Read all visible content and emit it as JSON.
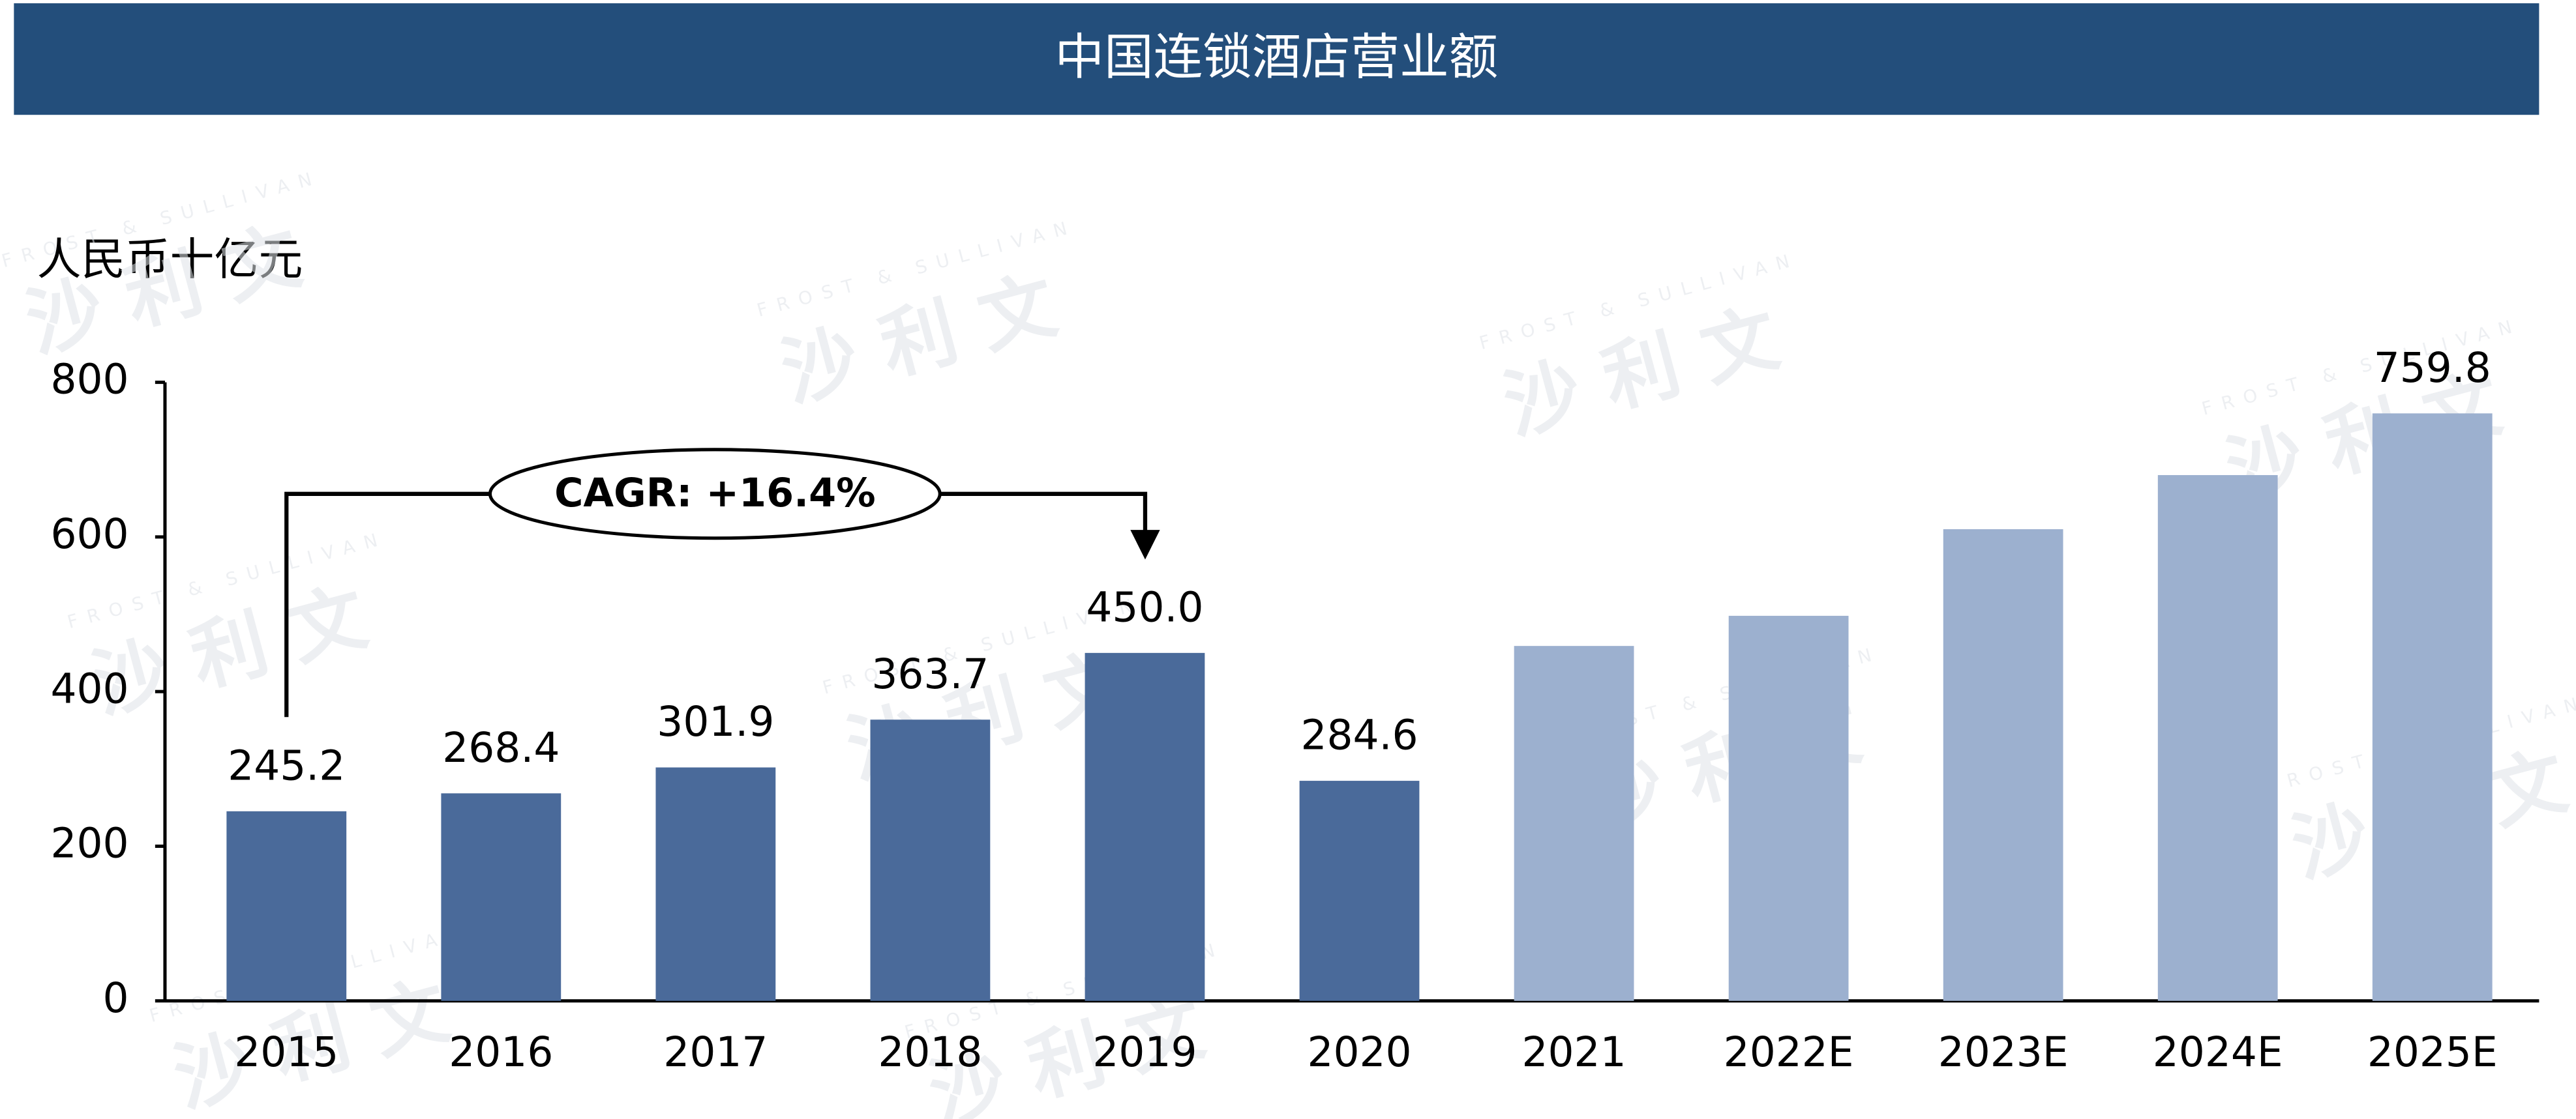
{
  "chart_data": {
    "type": "bar",
    "title": "中国连锁酒店营业额",
    "y_label": "人民币十亿元",
    "categories": [
      "2015",
      "2016",
      "2017",
      "2018",
      "2019",
      "2020",
      "2021",
      "2022E",
      "2023E",
      "2024E",
      "2025E"
    ],
    "values": [
      245.2,
      268.4,
      301.9,
      363.7,
      450.0,
      284.6,
      459,
      498,
      610,
      680,
      759.8
    ],
    "value_labels": [
      "245.2",
      "268.4",
      "301.9",
      "363.7",
      "450.0",
      "284.6",
      null,
      null,
      null,
      null,
      "759.8"
    ],
    "colors": [
      "#4a6a9a",
      "#4a6a9a",
      "#4a6a9a",
      "#4a6a9a",
      "#4a6a9a",
      "#4a6a9a",
      "#9cb0cf",
      "#9cb0cf",
      "#9cb0cf",
      "#9cb0cf",
      "#9cb0cf"
    ],
    "ylim": [
      0,
      800
    ],
    "yticks": [
      0,
      200,
      400,
      600,
      800
    ],
    "grid": false,
    "annotation": "CAGR: +16.4%",
    "watermark": {
      "brand": "沙 利 文",
      "english": "FROST & SULLIVAN"
    }
  }
}
